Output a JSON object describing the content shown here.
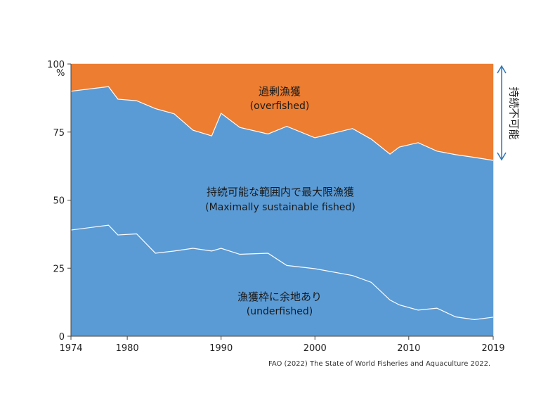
{
  "chart_data": {
    "type": "area",
    "stacked": true,
    "x": [
      1974,
      1978,
      1979,
      1981,
      1983,
      1985,
      1987,
      1989,
      1990,
      1992,
      1995,
      1997,
      2000,
      2004,
      2006,
      2008,
      2009,
      2011,
      2013,
      2015,
      2017,
      2019
    ],
    "series": [
      {
        "name": "漁獲枠に余地あり",
        "name_en": "(underfished)",
        "color": "#5b9bd5",
        "values": [
          39.0,
          40.8,
          37.2,
          37.6,
          30.5,
          31.3,
          32.3,
          31.3,
          32.3,
          30.1,
          30.5,
          26.0,
          24.8,
          22.3,
          19.8,
          13.3,
          11.5,
          9.6,
          10.3,
          7.1,
          6.1,
          7.0
        ]
      },
      {
        "name": "持続可能な範囲内で最大限漁獲",
        "name_en": "(Maximally sustainable fished)",
        "color": "#5b9bd5",
        "values": [
          51.0,
          50.9,
          49.9,
          48.9,
          53.1,
          50.4,
          43.4,
          42.3,
          49.6,
          46.6,
          43.8,
          51.1,
          48.1,
          54.0,
          52.6,
          53.6,
          58.0,
          61.5,
          57.7,
          59.6,
          59.6,
          57.6
        ]
      },
      {
        "name": "過剰漁獲",
        "name_en": "(overfished)",
        "color": "#ed7d31",
        "values": [
          10.0,
          8.3,
          12.9,
          13.5,
          16.4,
          18.3,
          24.3,
          26.4,
          18.1,
          23.3,
          25.7,
          22.9,
          27.1,
          23.7,
          27.6,
          33.1,
          30.5,
          28.9,
          32.0,
          33.3,
          34.3,
          35.4
        ]
      }
    ],
    "x_tick_labels": [
      "1974",
      "1980",
      "1990",
      "2000",
      "2010",
      "2019"
    ],
    "x_tick_values": [
      1974,
      1980,
      1990,
      2000,
      2010,
      2019
    ],
    "y_tick_labels": [
      "0",
      "25",
      "50",
      "75",
      "100"
    ],
    "y_unit": "%",
    "ylim": [
      0,
      100
    ],
    "xlim": [
      1974,
      2019
    ],
    "unsustainable_label": "持続不可能",
    "source": "FAO (2022) The State of World Fisheries and Aquaculture 2022."
  }
}
